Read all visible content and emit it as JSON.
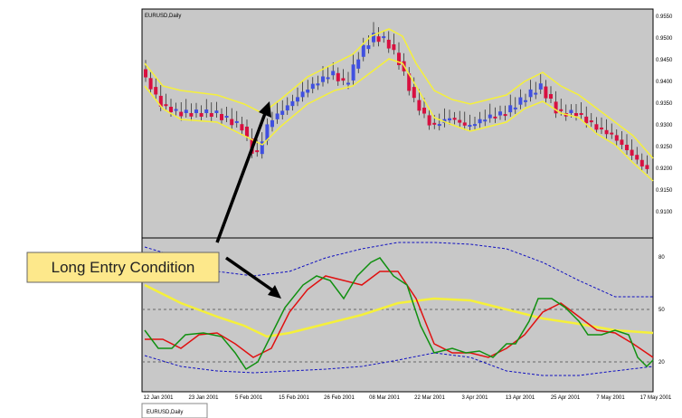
{
  "window": {
    "title": "EURUSD,Daily",
    "tab": "EURUSD,Daily"
  },
  "annotation": "Long Entry Condition",
  "price_axis": [
    "0.9550",
    "0.9500",
    "0.9450",
    "0.9400",
    "0.9350",
    "0.9300",
    "0.9250",
    "0.9200",
    "0.9150",
    "0.9100"
  ],
  "oscillator_axis": [
    "80",
    "50",
    "20"
  ],
  "dates": [
    "12 Jan 2001",
    "23 Jan 2001",
    "5 Feb 2001",
    "15 Feb 2001",
    "26 Feb 2001",
    "08 Mar 2001",
    "22 Mar 2001",
    "3 Apr 2001",
    "13 Apr 2001",
    "25 Apr 2001",
    "7 May 2001",
    "17 May 2001"
  ]
}
